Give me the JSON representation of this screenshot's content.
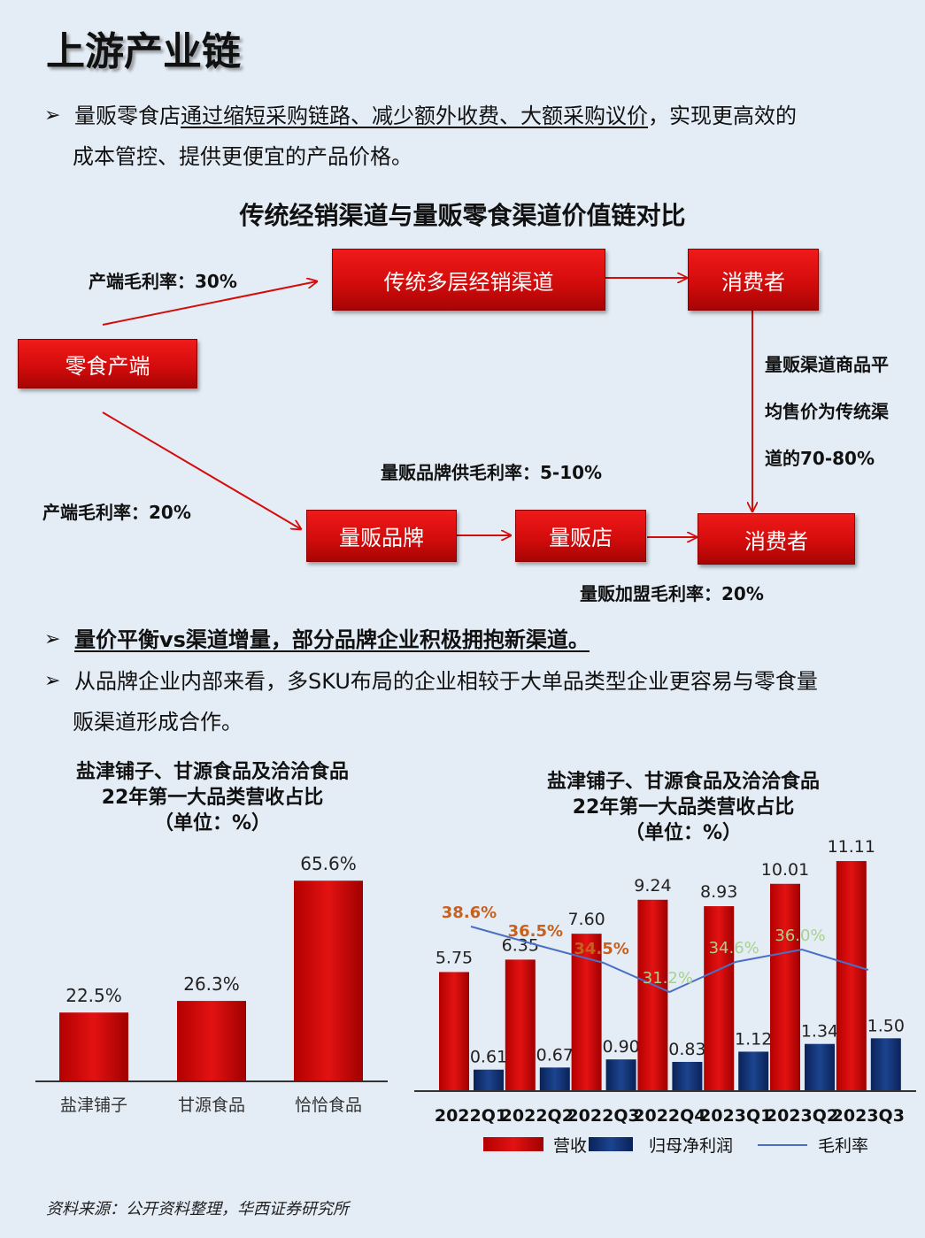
{
  "page": {
    "title": "上游产业链",
    "bullet1": {
      "prefix": "量贩零食店",
      "underlined": "通过缩短采购链路、减少额外收费、大额采购议价",
      "suffix": "，实现更高效的",
      "line2": "成本管控、提供更便宜的产品价格。"
    },
    "bullet2": "量价平衡vs渠道增量，部分品牌企业积极拥抱新渠道。",
    "bullet3": {
      "line1": "从品牌企业内部来看，多SKU布局的企业相较于大单品类型企业更容易与零食量",
      "line2": "贩渠道形成合作。"
    },
    "footnote": "资料来源：公开资料整理，华西证券研究所",
    "arrow_glyph": "➢",
    "colors": {
      "accent_red": "#d40c0c",
      "navy": "#0f2d6b",
      "line_blue": "#4a6fc4",
      "background": "#e4ecf5"
    }
  },
  "diagram": {
    "title": "传统经销渠道与量贩零食渠道价值链对比",
    "nodes": {
      "producer": "零食产端",
      "traditional": "传统多层经销渠道",
      "consumer_top": "消费者",
      "brand": "量贩品牌",
      "store": "量贩店",
      "consumer_bottom": "消费者"
    },
    "labels": {
      "producer_margin_top": "产端毛利率：30%",
      "producer_margin_bottom": "产端毛利率：20%",
      "brand_margin": "量贩品牌供毛利率：5-10%",
      "franchise_margin": "量贩加盟毛利率：20%",
      "price_note_1": "量贩渠道商品平",
      "price_note_2": "均售价为传统渠",
      "price_note_3": "道的70-80%"
    }
  },
  "chart_data": [
    {
      "type": "bar",
      "title_lines": [
        "盐津铺子、甘源食品及洽洽食品",
        "22年第一大品类营收占比",
        "（单位：%）"
      ],
      "categories": [
        "盐津铺子",
        "甘源食品",
        "恰恰食品"
      ],
      "values": [
        22.5,
        26.3,
        65.6
      ],
      "value_labels": [
        "22.5%",
        "26.3%",
        "65.6%"
      ],
      "ylim": [
        0,
        70
      ],
      "grid": false,
      "legend": "none"
    },
    {
      "type": "bar",
      "title_lines": [
        "盐津铺子、甘源食品及洽洽食品",
        "22年第一大品类营收占比",
        "（单位：%）"
      ],
      "categories": [
        "2022Q1",
        "2022Q2",
        "2022Q3",
        "2022Q4",
        "2023Q1",
        "2023Q2",
        "2023Q3"
      ],
      "series": [
        {
          "name": "营收",
          "kind": "bar",
          "color": "#d40c0c",
          "values": [
            5.75,
            6.35,
            7.6,
            9.24,
            8.93,
            10.01,
            11.11
          ],
          "labels": [
            "5.75",
            "6.35",
            "7.60",
            "9.24",
            "8.93",
            "10.01",
            "11.11"
          ]
        },
        {
          "name": "归母净利润",
          "kind": "bar",
          "color": "#0f2d6b",
          "values": [
            0.61,
            0.67,
            0.9,
            0.83,
            1.12,
            1.34,
            1.5
          ],
          "labels": [
            "0.61",
            "0.67",
            "0.90",
            "0.83",
            "1.12",
            "1.34",
            "1.50"
          ]
        },
        {
          "name": "毛利率",
          "kind": "line",
          "color": "#4a6fc4",
          "values": [
            38.6,
            36.5,
            34.5,
            31.2,
            34.6,
            36.0,
            33.7
          ],
          "labels": [
            "38.6%",
            "36.5%",
            "34.5%",
            "31.2%",
            "34.6%",
            "36.0%",
            ""
          ],
          "label_colors": [
            "#c8601e",
            "#c8601e",
            "#c8601e",
            "#a9d18e",
            "#a9d18e",
            "#a9d18e",
            ""
          ]
        }
      ],
      "ylim": [
        0,
        12
      ],
      "ylim_rate": [
        20,
        48
      ],
      "grid": false,
      "legend": "bottom"
    }
  ]
}
